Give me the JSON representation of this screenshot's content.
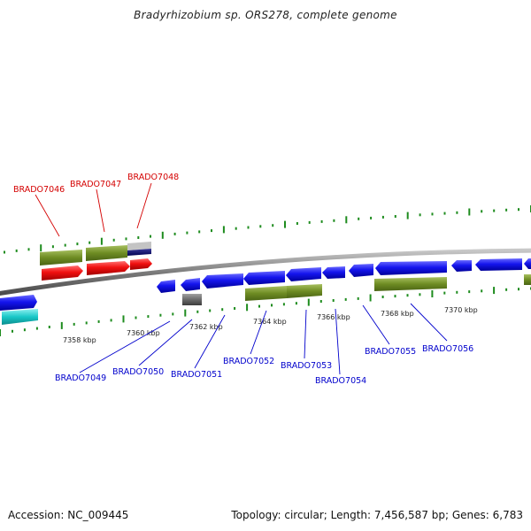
{
  "header": {
    "title": "Bradyrhizobium sp. ORS278, complete genome"
  },
  "footer": {
    "accession": "Accession: NC_009445",
    "stats": "Topology: circular; Length: 7,456,587 bp; Genes: 6,783"
  },
  "colors": {
    "backbone": "#808080",
    "upper_gene_label": "#d40000",
    "lower_gene_label": "#0000cc",
    "tick": "#1e8c1e",
    "cds_forward": "#0a0ae6",
    "cds_reverse": "#e60000",
    "annotation_olive": "#6e8c23",
    "other": "#19c8c8"
  },
  "scale_labels": [
    {
      "text": "7358 kbp"
    },
    {
      "text": "7360 kbp"
    },
    {
      "text": "7362 kbp"
    },
    {
      "text": "7364 kbp"
    },
    {
      "text": "7366 kbp"
    },
    {
      "text": "7368 kbp"
    },
    {
      "text": "7370 kbp"
    }
  ],
  "genes_upper": [
    {
      "label": "BRADO7046"
    },
    {
      "label": "BRADO7047"
    },
    {
      "label": "BRADO7048"
    }
  ],
  "genes_lower": [
    {
      "label": "BRADO7049"
    },
    {
      "label": "BRADO7050"
    },
    {
      "label": "BRADO7051"
    },
    {
      "label": "BRADO7052"
    },
    {
      "label": "BRADO7053"
    },
    {
      "label": "BRADO7054"
    },
    {
      "label": "BRADO7055"
    },
    {
      "label": "BRADO7056"
    }
  ]
}
